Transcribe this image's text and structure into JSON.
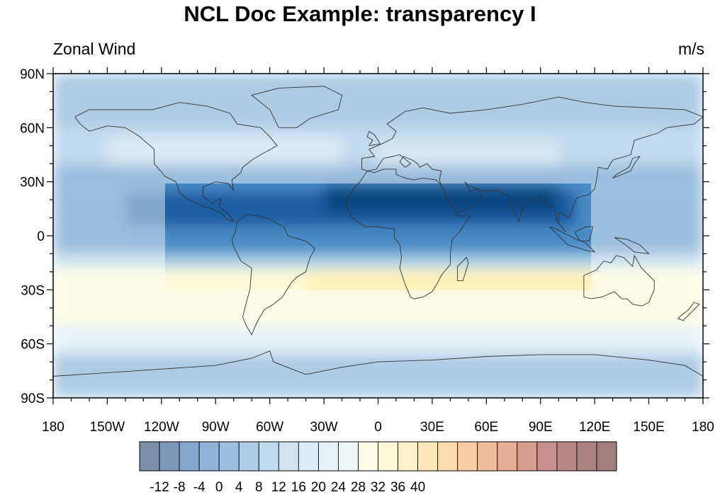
{
  "title": "NCL Doc Example: transparency I",
  "left_string": "Zonal Wind",
  "right_string": "m/s",
  "map": {
    "projection": "cylindrical equidistant",
    "lon_range": [
      -180,
      180
    ],
    "lat_range": [
      -90,
      90
    ],
    "lat_ticks": [
      {
        "value": 90,
        "label": "90N"
      },
      {
        "value": 60,
        "label": "60N"
      },
      {
        "value": 30,
        "label": "30N"
      },
      {
        "value": 0,
        "label": "0"
      },
      {
        "value": -30,
        "label": "30S"
      },
      {
        "value": -60,
        "label": "60S"
      },
      {
        "value": -90,
        "label": "90S"
      }
    ],
    "lon_ticks": [
      {
        "value": -180,
        "label": "180"
      },
      {
        "value": -150,
        "label": "150W"
      },
      {
        "value": -120,
        "label": "120W"
      },
      {
        "value": -90,
        "label": "90W"
      },
      {
        "value": -60,
        "label": "60W"
      },
      {
        "value": -30,
        "label": "30W"
      },
      {
        "value": 0,
        "label": "0"
      },
      {
        "value": 30,
        "label": "30E"
      },
      {
        "value": 60,
        "label": "60E"
      },
      {
        "value": 90,
        "label": "90E"
      },
      {
        "value": 120,
        "label": "120E"
      },
      {
        "value": 150,
        "label": "150E"
      },
      {
        "value": 180,
        "label": "180"
      }
    ],
    "opaque_region": {
      "lon": [
        -118,
        118
      ],
      "lat": [
        -30,
        29
      ]
    },
    "outside_opacity": 0.55,
    "wind_field": [
      {
        "lon": [
          -180,
          180
        ],
        "lat": [
          60,
          90
        ],
        "value": 4
      },
      {
        "lon": [
          -180,
          180
        ],
        "lat": [
          40,
          60
        ],
        "value": 10
      },
      {
        "lon": [
          -150,
          -20
        ],
        "lat": [
          38,
          55
        ],
        "value": 16
      },
      {
        "lon": [
          0,
          100
        ],
        "lat": [
          40,
          52
        ],
        "value": 16
      },
      {
        "lon": [
          -180,
          180
        ],
        "lat": [
          25,
          40
        ],
        "value": 2
      },
      {
        "lon": [
          -180,
          180
        ],
        "lat": [
          -10,
          25
        ],
        "value": 0
      },
      {
        "lon": [
          -140,
          110
        ],
        "lat": [
          5,
          25
        ],
        "value": -6
      },
      {
        "lon": [
          -30,
          100
        ],
        "lat": [
          12,
          28
        ],
        "value": -10
      },
      {
        "lon": [
          -130,
          -80
        ],
        "lat": [
          5,
          20
        ],
        "value": -8
      },
      {
        "lon": [
          -180,
          180
        ],
        "lat": [
          -18,
          -10
        ],
        "value": 14
      },
      {
        "lon": [
          -180,
          180
        ],
        "lat": [
          -50,
          -18
        ],
        "value": 28
      },
      {
        "lon": [
          -40,
          120
        ],
        "lat": [
          -32,
          -20
        ],
        "value": 34
      },
      {
        "lon": [
          -180,
          180
        ],
        "lat": [
          -65,
          -50
        ],
        "value": 20
      },
      {
        "lon": [
          -180,
          180
        ],
        "lat": [
          -90,
          -65
        ],
        "value": 6
      }
    ]
  },
  "colorbar": {
    "labels": [
      "-12",
      "-8",
      "-4",
      "0",
      "4",
      "8",
      "12",
      "16",
      "20",
      "24",
      "28",
      "32",
      "36",
      "40"
    ],
    "colors": [
      "#0a3163",
      "#104682",
      "#1e5ea4",
      "#3173b8",
      "#4a8bc6",
      "#6aa3d3",
      "#8cbde0",
      "#a6cee7",
      "#bcdcec",
      "#d0e7f1",
      "#e3f1f7",
      "#fdfbd5",
      "#fdf0b8",
      "#fde39e",
      "#fbd184",
      "#f7bb6c",
      "#f0a058",
      "#e3864a",
      "#d06c3f",
      "#b54f33",
      "#98362a",
      "#7c2520",
      "#661b1a",
      "#541313"
    ],
    "opacity": 0.55
  }
}
